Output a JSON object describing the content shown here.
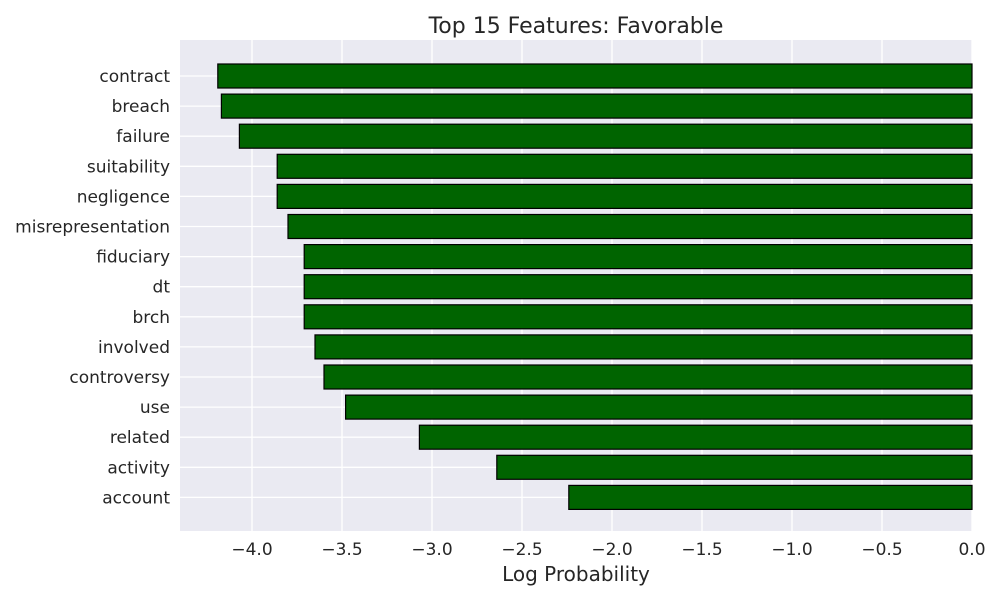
{
  "chart_data": {
    "type": "bar",
    "orientation": "horizontal",
    "title": "Top 15 Features: Favorable",
    "xlabel": "Log Probability",
    "ylabel": "",
    "categories": [
      "contract",
      "breach",
      "failure",
      "suitability",
      "negligence",
      "misrepresentation",
      "fiduciary",
      "dt",
      "brch",
      "involved",
      "controversy",
      "use",
      "related",
      "activity",
      "account"
    ],
    "values": [
      -4.19,
      -4.17,
      -4.07,
      -3.86,
      -3.86,
      -3.8,
      -3.71,
      -3.71,
      -3.71,
      -3.65,
      -3.6,
      -3.48,
      -3.07,
      -2.64,
      -2.24
    ],
    "xlim": [
      -4.4,
      0.0
    ],
    "xticks": [
      -4.0,
      -3.5,
      -3.0,
      -2.5,
      -2.0,
      -1.5,
      -1.0,
      -0.5,
      0.0
    ],
    "xtick_labels": [
      "−4.0",
      "−3.5",
      "−3.0",
      "−2.5",
      "−2.0",
      "−1.5",
      "−1.0",
      "−0.5",
      "0.0"
    ],
    "grid": true,
    "colors": {
      "bar_fill": "#006400",
      "bar_edge": "#000000",
      "plot_background": "#eaeaf2",
      "grid": "#ffffff"
    }
  }
}
